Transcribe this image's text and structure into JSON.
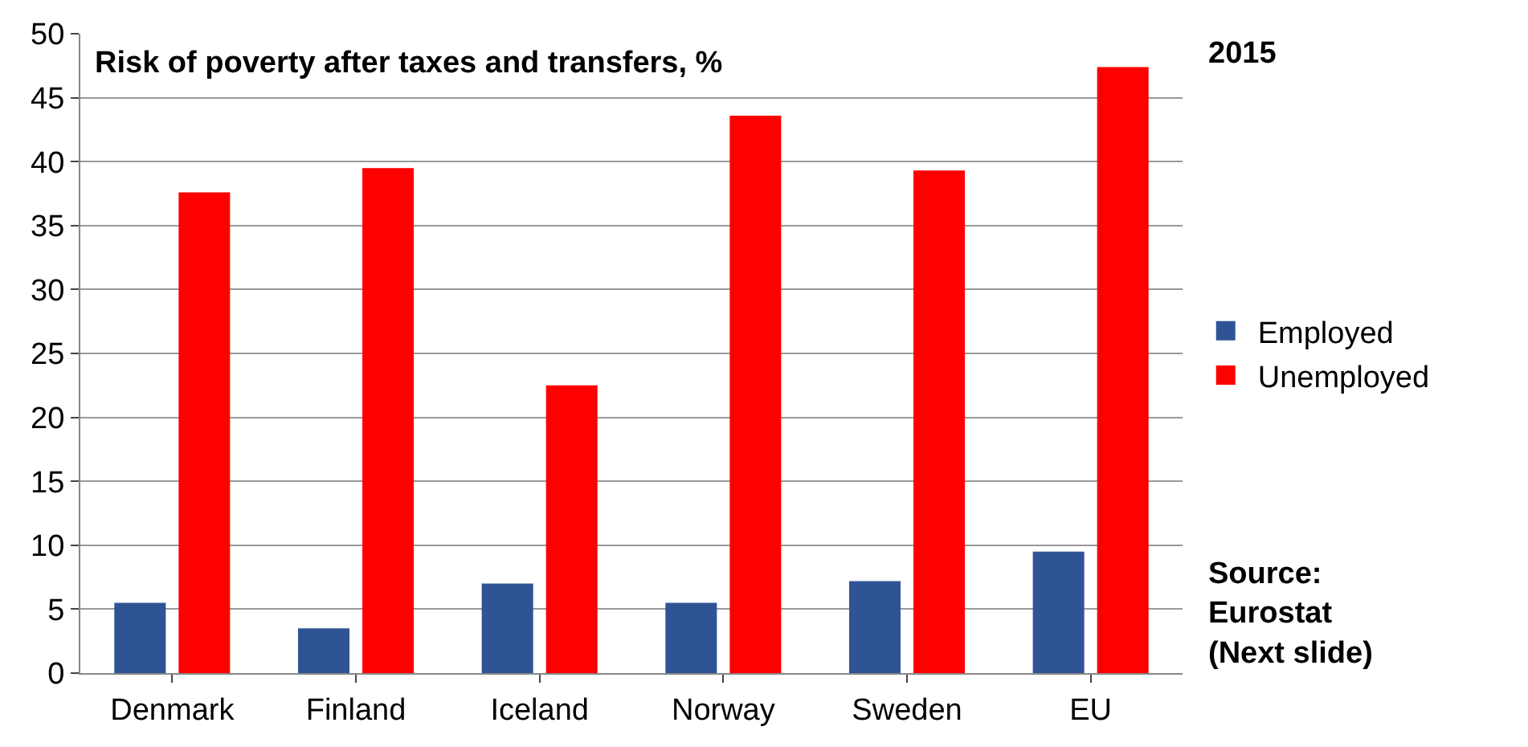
{
  "chart_data": {
    "type": "bar",
    "title": "Risk of poverty after taxes and transfers, %",
    "categories": [
      "Denmark",
      "Finland",
      "Iceland",
      "Norway",
      "Sweden",
      "EU"
    ],
    "series": [
      {
        "name": "Employed",
        "color": "#2f5496",
        "values": [
          5.5,
          3.5,
          7.0,
          5.5,
          7.2,
          9.5
        ]
      },
      {
        "name": "Unemployed",
        "color": "#ff0000",
        "values": [
          37.6,
          39.5,
          22.5,
          43.6,
          39.3,
          47.4
        ]
      }
    ],
    "ylim": [
      0,
      50
    ],
    "yticks": [
      0,
      5,
      10,
      15,
      20,
      25,
      30,
      35,
      40,
      45,
      50
    ],
    "grid": "y",
    "legend": "right",
    "annotations": [
      "2015",
      "Source:\nEurostat\n(Next slide)"
    ]
  }
}
